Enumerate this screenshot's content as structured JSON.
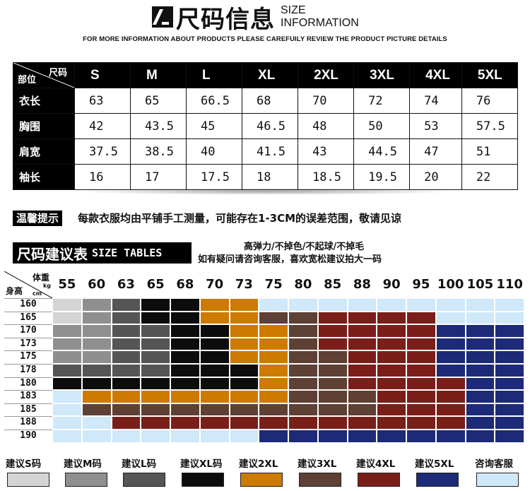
{
  "header": {
    "title_cn": "尺码信息",
    "title_en_1": "SIZE",
    "title_en_2": "INFORMATION",
    "subtitle": "FOR MORE  INFORMATION ABOUT PRODUCTS PLEASE CAREFUILY REVIEW THE PRODUCT PICTURE DETAILS"
  },
  "size_table": {
    "corner_size": "尺码",
    "corner_part": "部位",
    "sizes": [
      "S",
      "M",
      "L",
      "XL",
      "2XL",
      "3XL",
      "4XL",
      "5XL"
    ],
    "rows": [
      {
        "part": "衣长",
        "values": [
          "63",
          "65",
          "66.5",
          "68",
          "70",
          "72",
          "74",
          "76"
        ]
      },
      {
        "part": "胸围",
        "values": [
          "42",
          "43.5",
          "45",
          "46.5",
          "48",
          "50",
          "53",
          "57.5"
        ]
      },
      {
        "part": "肩宽",
        "values": [
          "37.5",
          "38.5",
          "40",
          "41.5",
          "43",
          "44.5",
          "47",
          "51"
        ]
      },
      {
        "part": "袖长",
        "values": [
          "16",
          "17",
          "17.5",
          "18",
          "18.5",
          "19.5",
          "20",
          "22"
        ]
      }
    ]
  },
  "notice": {
    "label": "温馨提示",
    "text": "每款衣服均由平铺手工测量，可能存在1-3CM的误差范围，敬请见谅"
  },
  "recommend": {
    "title_cn": "尺码建议表",
    "title_en": "SIZE TABLES",
    "tagline_1": "高弹力/不掉色/不起球/不掉毛",
    "tagline_2": "如有疑问请咨询客服，喜欢宽松建议拍大一码",
    "corner_weight": "体重",
    "corner_kg": "kg",
    "corner_height": "身高",
    "corner_cm": "cm",
    "weights": [
      "55",
      "60",
      "63",
      "65",
      "68",
      "70",
      "73",
      "75",
      "80",
      "85",
      "88",
      "90",
      "95",
      "100",
      "105",
      "110"
    ],
    "heights": [
      "160",
      "165",
      "170",
      "173",
      "175",
      "178",
      "180",
      "183",
      "185",
      "188",
      "190"
    ],
    "colors": {
      "S": "#d4d4d4",
      "M": "#8f8f8f",
      "L": "#555555",
      "XL": "#0c0c0c",
      "2XL": "#cc7a00",
      "3XL": "#5e4034",
      "4XL": "#7a1e1a",
      "5XL": "#1c2a78",
      "C": "#cfe8fa"
    },
    "grid": [
      [
        "S",
        "M",
        "L",
        "XL",
        "XL",
        "2XL",
        "2XL",
        "C",
        "C",
        "C",
        "C",
        "C",
        "C",
        "C",
        "C",
        "C"
      ],
      [
        "S",
        "M",
        "L",
        "XL",
        "XL",
        "2XL",
        "2XL",
        "3XL",
        "3XL",
        "4XL",
        "4XL",
        "4XL",
        "4XL",
        "C",
        "C",
        "C"
      ],
      [
        "M",
        "M",
        "L",
        "L",
        "XL",
        "XL",
        "2XL",
        "2XL",
        "3XL",
        "4XL",
        "4XL",
        "4XL",
        "4XL",
        "5XL",
        "5XL",
        "5XL"
      ],
      [
        "M",
        "M",
        "L",
        "L",
        "XL",
        "XL",
        "2XL",
        "2XL",
        "3XL",
        "4XL",
        "4XL",
        "4XL",
        "4XL",
        "5XL",
        "5XL",
        "5XL"
      ],
      [
        "M",
        "M",
        "L",
        "L",
        "XL",
        "XL",
        "2XL",
        "2XL",
        "3XL",
        "3XL",
        "4XL",
        "4XL",
        "4XL",
        "5XL",
        "5XL",
        "5XL"
      ],
      [
        "L",
        "L",
        "L",
        "L",
        "XL",
        "XL",
        "XL",
        "2XL",
        "3XL",
        "3XL",
        "4XL",
        "4XL",
        "4XL",
        "5XL",
        "5XL",
        "5XL"
      ],
      [
        "XL",
        "XL",
        "XL",
        "XL",
        "XL",
        "XL",
        "XL",
        "2XL",
        "3XL",
        "3XL",
        "4XL",
        "4XL",
        "4XL",
        "4XL",
        "5XL",
        "5XL"
      ],
      [
        "C",
        "2XL",
        "2XL",
        "2XL",
        "2XL",
        "2XL",
        "2XL",
        "2XL",
        "3XL",
        "3XL",
        "3XL",
        "4XL",
        "4XL",
        "4XL",
        "5XL",
        "5XL"
      ],
      [
        "C",
        "3XL",
        "3XL",
        "3XL",
        "3XL",
        "3XL",
        "3XL",
        "3XL",
        "3XL",
        "3XL",
        "3XL",
        "4XL",
        "4XL",
        "4XL",
        "5XL",
        "5XL"
      ],
      [
        "C",
        "C",
        "4XL",
        "4XL",
        "4XL",
        "4XL",
        "4XL",
        "4XL",
        "4XL",
        "4XL",
        "4XL",
        "4XL",
        "4XL",
        "4XL",
        "5XL",
        "5XL"
      ],
      [
        "C",
        "C",
        "C",
        "C",
        "C",
        "C",
        "C",
        "5XL",
        "5XL",
        "5XL",
        "5XL",
        "5XL",
        "5XL",
        "5XL",
        "5XL",
        "5XL"
      ]
    ]
  },
  "legend": [
    {
      "label": "建议S码",
      "key": "S"
    },
    {
      "label": "建议M码",
      "key": "M"
    },
    {
      "label": "建议L码",
      "key": "L"
    },
    {
      "label": "建议XL码",
      "key": "XL"
    },
    {
      "label": "建议2XL",
      "key": "2XL"
    },
    {
      "label": "建议3XL",
      "key": "3XL"
    },
    {
      "label": "建议4XL",
      "key": "4XL"
    },
    {
      "label": "建议5XL",
      "key": "5XL"
    },
    {
      "label": "咨询客服",
      "key": "C"
    }
  ]
}
